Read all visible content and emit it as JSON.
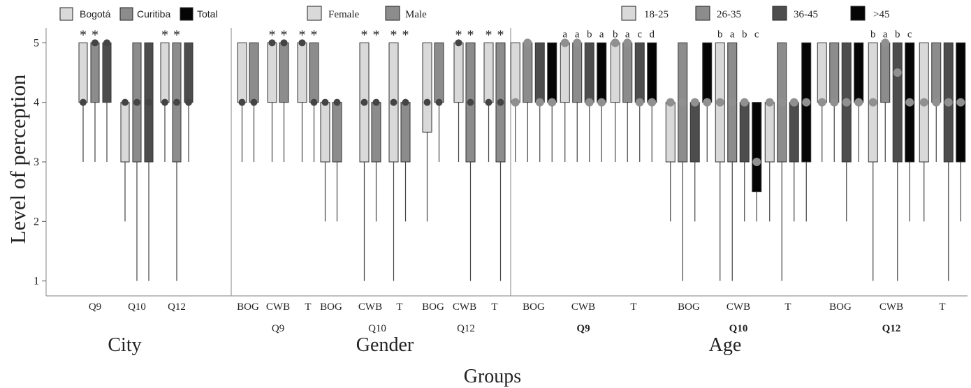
{
  "chart_data": {
    "type": "boxplot",
    "ylabel": "Level of perception",
    "xlabel": "Groups",
    "yticks": [
      1,
      2,
      3,
      4,
      5
    ],
    "ylim": [
      0.75,
      5.25
    ],
    "colors": {
      "c1": "#d9d9d9",
      "c2": "#8c8c8c",
      "c3": "#4d4d4d",
      "c4": "#050505"
    },
    "panels": [
      {
        "title": "City",
        "legend": [
          {
            "label": "Bogotá",
            "color": "c1"
          },
          {
            "label": "Curitiba",
            "color": "c2"
          },
          {
            "label": "Total",
            "color": "c4"
          }
        ],
        "groups": [
          {
            "label": "Q9",
            "boxes": [
              {
                "color": "c1",
                "q1": 4,
                "q3": 5,
                "wlo": 3,
                "whi": 5,
                "med": 4,
                "mark": "*"
              },
              {
                "color": "c2",
                "q1": 4,
                "q3": 5,
                "wlo": 3,
                "whi": 5,
                "med": 5,
                "mark": "*"
              },
              {
                "color": "c3",
                "q1": 4,
                "q3": 5,
                "wlo": 3,
                "whi": 5,
                "med": 5
              }
            ]
          },
          {
            "label": "Q10",
            "boxes": [
              {
                "color": "c1",
                "q1": 3,
                "q3": 4,
                "wlo": 2,
                "whi": 4,
                "med": 4
              },
              {
                "color": "c2",
                "q1": 3,
                "q3": 5,
                "wlo": 1,
                "whi": 5,
                "med": 4
              },
              {
                "color": "c3",
                "q1": 3,
                "q3": 5,
                "wlo": 1,
                "whi": 5,
                "med": 4
              }
            ]
          },
          {
            "label": "Q12",
            "boxes": [
              {
                "color": "c1",
                "q1": 4,
                "q3": 5,
                "wlo": 3,
                "whi": 5,
                "med": 4,
                "mark": "*"
              },
              {
                "color": "c2",
                "q1": 3,
                "q3": 5,
                "wlo": 1,
                "whi": 5,
                "med": 4,
                "mark": "*"
              },
              {
                "color": "c3",
                "q1": 4,
                "q3": 5,
                "wlo": 3,
                "whi": 5,
                "med": 4
              }
            ]
          }
        ]
      },
      {
        "title": "Gender",
        "legend": [
          {
            "label": "Female",
            "color": "c1"
          },
          {
            "label": "Male",
            "color": "c2"
          }
        ],
        "supergroups": [
          "Q9",
          "Q10",
          "Q12"
        ],
        "groups": [
          {
            "label": "BOG",
            "super": 0,
            "boxes": [
              {
                "color": "c1",
                "q1": 4,
                "q3": 5,
                "wlo": 3,
                "whi": 5,
                "med": 4
              },
              {
                "color": "c2",
                "q1": 4,
                "q3": 5,
                "wlo": 3,
                "whi": 5,
                "med": 4
              }
            ]
          },
          {
            "label": "CWB",
            "super": 0,
            "boxes": [
              {
                "color": "c1",
                "q1": 4,
                "q3": 5,
                "wlo": 3,
                "whi": 5,
                "med": 5,
                "mark": "*"
              },
              {
                "color": "c2",
                "q1": 4,
                "q3": 5,
                "wlo": 3,
                "whi": 5,
                "med": 5,
                "mark": "*"
              }
            ]
          },
          {
            "label": "T",
            "super": 0,
            "boxes": [
              {
                "color": "c1",
                "q1": 4,
                "q3": 5,
                "wlo": 3,
                "whi": 5,
                "med": 5,
                "mark": "*"
              },
              {
                "color": "c2",
                "q1": 4,
                "q3": 5,
                "wlo": 3,
                "whi": 5,
                "med": 4,
                "mark": "*"
              }
            ]
          },
          {
            "label": "BOG",
            "super": 1,
            "boxes": [
              {
                "color": "c1",
                "q1": 3,
                "q3": 4,
                "wlo": 2,
                "whi": 4,
                "med": 4
              },
              {
                "color": "c2",
                "q1": 3,
                "q3": 4,
                "wlo": 2,
                "whi": 4,
                "med": 4
              }
            ]
          },
          {
            "label": "CWB",
            "super": 1,
            "boxes": [
              {
                "color": "c1",
                "q1": 3,
                "q3": 5,
                "wlo": 1,
                "whi": 5,
                "med": 4,
                "mark": "*"
              },
              {
                "color": "c2",
                "q1": 3,
                "q3": 4,
                "wlo": 2,
                "whi": 4,
                "med": 4,
                "mark": "*"
              }
            ]
          },
          {
            "label": "T",
            "super": 1,
            "boxes": [
              {
                "color": "c1",
                "q1": 3,
                "q3": 5,
                "wlo": 1,
                "whi": 5,
                "med": 4,
                "mark": "*"
              },
              {
                "color": "c2",
                "q1": 3,
                "q3": 4,
                "wlo": 2,
                "whi": 4,
                "med": 4,
                "mark": "*"
              }
            ]
          },
          {
            "label": "BOG",
            "super": 2,
            "boxes": [
              {
                "color": "c1",
                "q1": 3.5,
                "q3": 5,
                "wlo": 2,
                "whi": 5,
                "med": 4
              },
              {
                "color": "c2",
                "q1": 4,
                "q3": 5,
                "wlo": 3,
                "whi": 5,
                "med": 4
              }
            ]
          },
          {
            "label": "CWB",
            "super": 2,
            "boxes": [
              {
                "color": "c1",
                "q1": 4,
                "q3": 5,
                "wlo": 3,
                "whi": 5,
                "med": 5,
                "mark": "*"
              },
              {
                "color": "c2",
                "q1": 3,
                "q3": 5,
                "wlo": 1,
                "whi": 5,
                "med": 4,
                "mark": "*"
              }
            ]
          },
          {
            "label": "T",
            "super": 2,
            "boxes": [
              {
                "color": "c1",
                "q1": 4,
                "q3": 5,
                "wlo": 3,
                "whi": 5,
                "med": 4,
                "mark": "*"
              },
              {
                "color": "c2",
                "q1": 3,
                "q3": 5,
                "wlo": 1,
                "whi": 5,
                "med": 4,
                "mark": "*"
              }
            ]
          }
        ]
      },
      {
        "title": "Age",
        "legend": [
          {
            "label": "18-25",
            "color": "c1"
          },
          {
            "label": "26-35",
            "color": "c2"
          },
          {
            "label": "36-45",
            "color": "c3"
          },
          {
            "label": ">45",
            "color": "c4"
          }
        ],
        "supergroups": [
          "Q9",
          "Q10",
          "Q12"
        ],
        "groups": [
          {
            "label": "BOG",
            "super": 0,
            "boxes": [
              {
                "color": "c1",
                "q1": 4,
                "q3": 5,
                "wlo": 3,
                "whi": 5,
                "med": 4
              },
              {
                "color": "c2",
                "q1": 4,
                "q3": 5,
                "wlo": 3,
                "whi": 5,
                "med": 5
              },
              {
                "color": "c3",
                "q1": 4,
                "q3": 5,
                "wlo": 3,
                "whi": 5,
                "med": 4
              },
              {
                "color": "c4",
                "q1": 4,
                "q3": 5,
                "wlo": 3,
                "whi": 5,
                "med": 4
              }
            ]
          },
          {
            "label": "CWB",
            "super": 0,
            "boxes": [
              {
                "color": "c1",
                "q1": 4,
                "q3": 5,
                "wlo": 3,
                "whi": 5,
                "med": 5,
                "mark": "a"
              },
              {
                "color": "c2",
                "q1": 4,
                "q3": 5,
                "wlo": 3,
                "whi": 5,
                "med": 5,
                "mark": "a"
              },
              {
                "color": "c3",
                "q1": 4,
                "q3": 5,
                "wlo": 3,
                "whi": 5,
                "med": 4,
                "mark": "b"
              },
              {
                "color": "c4",
                "q1": 4,
                "q3": 5,
                "wlo": 3,
                "whi": 5,
                "med": 4,
                "mark": "a"
              }
            ]
          },
          {
            "label": "T",
            "super": 0,
            "boxes": [
              {
                "color": "c1",
                "q1": 4,
                "q3": 5,
                "wlo": 3,
                "whi": 5,
                "med": 5,
                "mark": "b"
              },
              {
                "color": "c2",
                "q1": 4,
                "q3": 5,
                "wlo": 3,
                "whi": 5,
                "med": 5,
                "mark": "a"
              },
              {
                "color": "c3",
                "q1": 4,
                "q3": 5,
                "wlo": 3,
                "whi": 5,
                "med": 4,
                "mark": "c"
              },
              {
                "color": "c4",
                "q1": 4,
                "q3": 5,
                "wlo": 3,
                "whi": 5,
                "med": 4,
                "mark": "d"
              }
            ]
          },
          {
            "label": "BOG",
            "super": 1,
            "boxes": [
              {
                "color": "c1",
                "q1": 3,
                "q3": 4,
                "wlo": 2,
                "whi": 4,
                "med": 4
              },
              {
                "color": "c2",
                "q1": 3,
                "q3": 5,
                "wlo": 1,
                "whi": 5,
                "med": 4
              },
              {
                "color": "c3",
                "q1": 3,
                "q3": 4,
                "wlo": 2,
                "whi": 4,
                "med": 4
              },
              {
                "color": "c4",
                "q1": 4,
                "q3": 5,
                "wlo": 3,
                "whi": 5,
                "med": 4
              }
            ]
          },
          {
            "label": "CWB",
            "super": 1,
            "boxes": [
              {
                "color": "c1",
                "q1": 3,
                "q3": 5,
                "wlo": 1,
                "whi": 5,
                "med": 4,
                "mark": "b"
              },
              {
                "color": "c2",
                "q1": 3,
                "q3": 5,
                "wlo": 1,
                "whi": 5,
                "med": 4,
                "mark": "a"
              },
              {
                "color": "c3",
                "q1": 3,
                "q3": 4,
                "wlo": 2,
                "whi": 4,
                "med": 4,
                "mark": "b"
              },
              {
                "color": "c4",
                "q1": 2.5,
                "q3": 4,
                "wlo": 2,
                "whi": 4,
                "med": 3,
                "mark": "c"
              }
            ]
          },
          {
            "label": "T",
            "super": 1,
            "boxes": [
              {
                "color": "c1",
                "q1": 3,
                "q3": 4,
                "wlo": 2,
                "whi": 4,
                "med": 4
              },
              {
                "color": "c2",
                "q1": 3,
                "q3": 5,
                "wlo": 1,
                "whi": 5,
                "med": 4
              },
              {
                "color": "c3",
                "q1": 3,
                "q3": 4,
                "wlo": 2,
                "whi": 4,
                "med": 4
              },
              {
                "color": "c4",
                "q1": 3,
                "q3": 5,
                "wlo": 2,
                "whi": 5,
                "med": 4
              }
            ]
          },
          {
            "label": "BOG",
            "super": 2,
            "boxes": [
              {
                "color": "c1",
                "q1": 4,
                "q3": 5,
                "wlo": 3,
                "whi": 5,
                "med": 4
              },
              {
                "color": "c2",
                "q1": 4,
                "q3": 5,
                "wlo": 3,
                "whi": 5,
                "med": 4
              },
              {
                "color": "c3",
                "q1": 3,
                "q3": 5,
                "wlo": 2,
                "whi": 5,
                "med": 4
              },
              {
                "color": "c4",
                "q1": 4,
                "q3": 5,
                "wlo": 3,
                "whi": 5,
                "med": 4
              }
            ]
          },
          {
            "label": "CWB",
            "super": 2,
            "boxes": [
              {
                "color": "c1",
                "q1": 3,
                "q3": 5,
                "wlo": 1,
                "whi": 5,
                "med": 4,
                "mark": "b"
              },
              {
                "color": "c2",
                "q1": 4,
                "q3": 5,
                "wlo": 3,
                "whi": 5,
                "med": 5,
                "mark": "a"
              },
              {
                "color": "c3",
                "q1": 3,
                "q3": 5,
                "wlo": 1,
                "whi": 5,
                "med": 4.5,
                "mark": "b"
              },
              {
                "color": "c4",
                "q1": 3,
                "q3": 5,
                "wlo": 2,
                "whi": 5,
                "med": 4,
                "mark": "c"
              }
            ]
          },
          {
            "label": "T",
            "super": 2,
            "boxes": [
              {
                "color": "c1",
                "q1": 3,
                "q3": 5,
                "wlo": 2,
                "whi": 5,
                "med": 4
              },
              {
                "color": "c2",
                "q1": 4,
                "q3": 5,
                "wlo": 3,
                "whi": 5,
                "med": 4
              },
              {
                "color": "c3",
                "q1": 3,
                "q3": 5,
                "wlo": 1,
                "whi": 5,
                "med": 4
              },
              {
                "color": "c4",
                "q1": 3,
                "q3": 5,
                "wlo": 2,
                "whi": 5,
                "med": 4
              }
            ]
          }
        ]
      }
    ]
  }
}
